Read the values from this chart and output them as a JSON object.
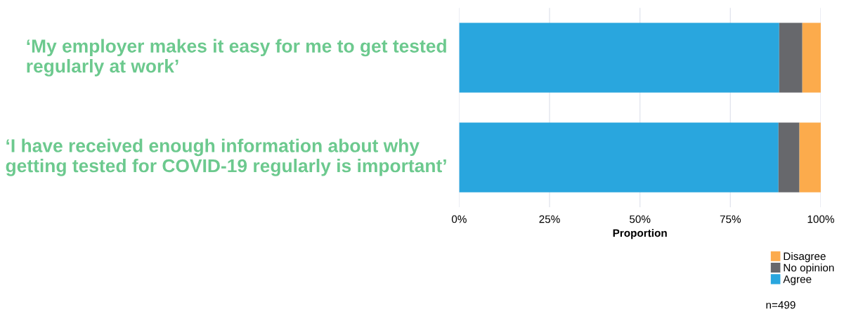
{
  "chart_data": {
    "type": "bar",
    "orientation": "horizontal",
    "stacked": true,
    "xlabel": "Proportion",
    "categories": [
      "‘My employer makes it easy for me to get tested regularly at work’",
      "‘I have received enough information about why getting tested for COVID-19 regularly is important’"
    ],
    "series": [
      {
        "name": "Agree",
        "color": "#29a6de",
        "values": [
          88.5,
          88.3
        ]
      },
      {
        "name": "No opinion",
        "color": "#67686c",
        "values": [
          6.4,
          5.8
        ]
      },
      {
        "name": "Disagree",
        "color": "#fcab4c",
        "values": [
          5.1,
          5.9
        ]
      }
    ],
    "xlim": [
      0,
      100
    ],
    "xticks": [
      {
        "value": 0,
        "label": "0%"
      },
      {
        "value": 25,
        "label": "25%"
      },
      {
        "value": 50,
        "label": "50%"
      },
      {
        "value": 75,
        "label": "75%"
      },
      {
        "value": 100,
        "label": "100%"
      }
    ],
    "grid": "x",
    "legend": "bottom right",
    "annotations": [
      "n=499"
    ]
  }
}
